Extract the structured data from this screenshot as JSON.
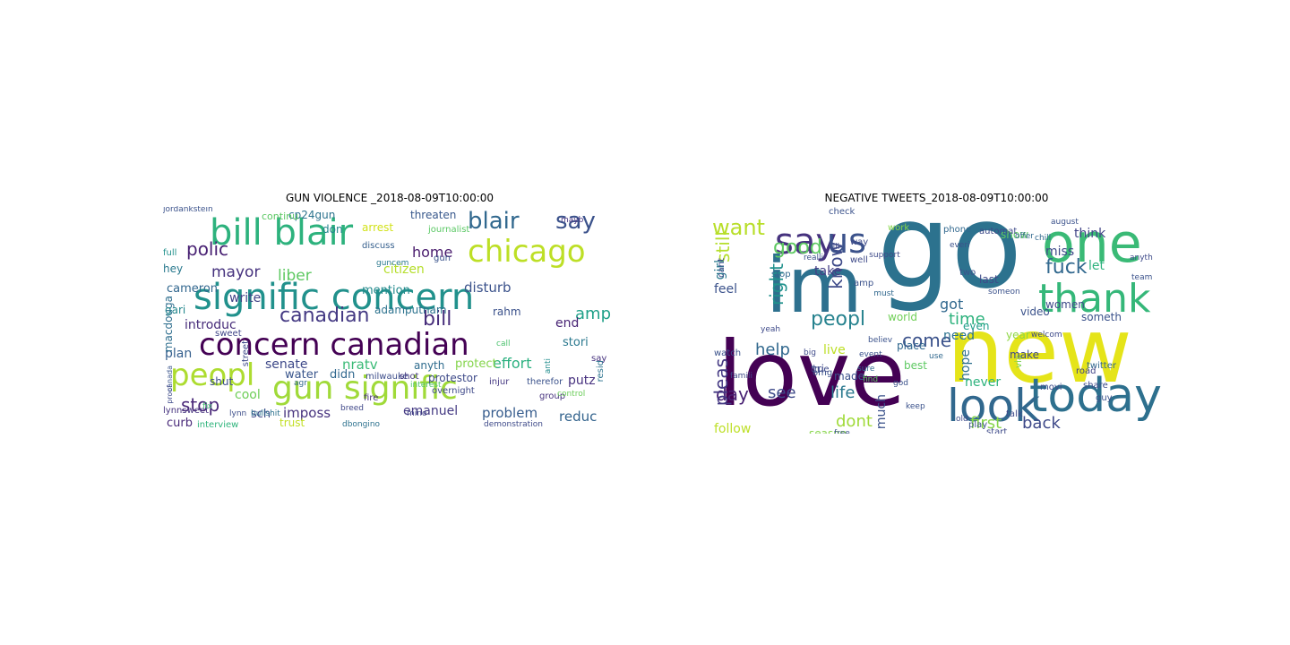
{
  "figures": [
    {
      "title": "GUN VIOLENCE _2018-08-09T10:00:00",
      "words": [
        {
          "text": "signific concern",
          "color": "#21918c"
        },
        {
          "text": "concern canadian",
          "color": "#440154"
        },
        {
          "text": "gun signific",
          "color": "#a0da39"
        },
        {
          "text": "bill blair",
          "color": "#2db27d"
        },
        {
          "text": "chicago",
          "color": "#bddf26"
        },
        {
          "text": "peopl",
          "color": "#addc30"
        },
        {
          "text": "blair",
          "color": "#31688e"
        },
        {
          "text": "say",
          "color": "#3b528b"
        },
        {
          "text": "canadian",
          "color": "#443983"
        },
        {
          "text": "bill",
          "color": "#472d7b"
        },
        {
          "text": "polic",
          "color": "#482173"
        },
        {
          "text": "mayor",
          "color": "#46327e"
        },
        {
          "text": "liber",
          "color": "#5ec962"
        },
        {
          "text": "stop",
          "color": "#482677"
        },
        {
          "text": "senate",
          "color": "#3e4989"
        },
        {
          "text": "effort",
          "color": "#2ab07f"
        },
        {
          "text": "problem",
          "color": "#365c8d"
        },
        {
          "text": "reduc",
          "color": "#33638d"
        },
        {
          "text": "imposs",
          "color": "#46327e"
        },
        {
          "text": "nratv",
          "color": "#3aba76"
        },
        {
          "text": "water",
          "color": "#39558c"
        },
        {
          "text": "amp",
          "color": "#1fa088"
        },
        {
          "text": "end",
          "color": "#482475"
        },
        {
          "text": "home",
          "color": "#481a6c"
        },
        {
          "text": "citizen",
          "color": "#b5de2b"
        },
        {
          "text": "cameron",
          "color": "#31668e"
        },
        {
          "text": "introduc",
          "color": "#472c7a"
        },
        {
          "text": "adamputnam",
          "color": "#2c728e"
        },
        {
          "text": "disturb",
          "color": "#3b528b"
        },
        {
          "text": "stori",
          "color": "#2a788e"
        },
        {
          "text": "putz",
          "color": "#46307e"
        },
        {
          "text": "emanuel",
          "color": "#443a83"
        },
        {
          "text": "write",
          "color": "#414487"
        },
        {
          "text": "plan",
          "color": "#355f8d"
        },
        {
          "text": "cool",
          "color": "#6ece58"
        },
        {
          "text": "sch",
          "color": "#3f4889"
        },
        {
          "text": "curb",
          "color": "#482979"
        },
        {
          "text": "trust",
          "color": "#c2df23"
        },
        {
          "text": "protect",
          "color": "#84d44b"
        },
        {
          "text": "rahm",
          "color": "#3b518b"
        },
        {
          "text": "anyth",
          "color": "#2f6c8e"
        },
        {
          "text": "didn",
          "color": "#31688e"
        },
        {
          "text": "mention",
          "color": "#238a8d"
        },
        {
          "text": "macdouga",
          "color": "#2e6e8e"
        },
        {
          "text": "gari",
          "color": "#24878e"
        },
        {
          "text": "hey",
          "color": "#29798e"
        },
        {
          "text": "arrest",
          "color": "#d2e21b"
        },
        {
          "text": "threaten",
          "color": "#38588c"
        },
        {
          "text": "cp24gun",
          "color": "#2c738e"
        },
        {
          "text": "don",
          "color": "#25858e"
        },
        {
          "text": "shut",
          "color": "#3d4e8a"
        },
        {
          "text": "full",
          "color": "#21918c"
        },
        {
          "text": "protestor",
          "color": "#3e4a89"
        },
        {
          "text": "continu",
          "color": "#5cc863"
        },
        {
          "text": "jordankstein",
          "color": "#3b528b"
        },
        {
          "text": "journalist",
          "color": "#5ac864"
        },
        {
          "text": "lynnsweet",
          "color": "#46337f"
        },
        {
          "text": "milwauke",
          "color": "#3d4d8a"
        },
        {
          "text": "therefor",
          "color": "#3b528b"
        },
        {
          "text": "injur",
          "color": "#453882"
        },
        {
          "text": "demonstration",
          "color": "#3e4a89"
        },
        {
          "text": "interview",
          "color": "#2fb47c"
        },
        {
          "text": "dbongino",
          "color": "#2c718e"
        },
        {
          "text": "overnight",
          "color": "#3e4989"
        },
        {
          "text": "shot",
          "color": "#453781"
        },
        {
          "text": "gun",
          "color": "#3a548c"
        },
        {
          "text": "discuss",
          "color": "#355f8d"
        },
        {
          "text": "sweet",
          "color": "#404688"
        },
        {
          "text": "resid",
          "color": "#2c738e"
        },
        {
          "text": "group",
          "color": "#46327e"
        },
        {
          "text": "fire",
          "color": "#472f7d"
        },
        {
          "text": "control",
          "color": "#6ccd5a"
        },
        {
          "text": "mino",
          "color": "#404588"
        },
        {
          "text": "breed",
          "color": "#3f4788"
        },
        {
          "text": "interest",
          "color": "#50c46a"
        },
        {
          "text": "call",
          "color": "#4ac16d"
        },
        {
          "text": "anti",
          "color": "#228d8d"
        },
        {
          "text": "street",
          "color": "#3e4989"
        },
        {
          "text": "bullshit",
          "color": "#2c728e"
        },
        {
          "text": "fix",
          "color": "#42be71"
        },
        {
          "text": "lynn",
          "color": "#3d4e8a"
        },
        {
          "text": "say",
          "color": "#46327e"
        },
        {
          "text": "mayb",
          "color": "#463480"
        },
        {
          "text": "agr",
          "color": "#31688e"
        },
        {
          "text": "canada",
          "color": "#3a548c"
        },
        {
          "text": "proof",
          "color": "#3e4a89"
        },
        {
          "text": "guncem",
          "color": "#2a788e"
        }
      ]
    },
    {
      "title": "NEGATIVE TWEETS_2018-08-09T10:00:00",
      "words": [
        {
          "text": "go",
          "color": "#2c728e"
        },
        {
          "text": "im",
          "color": "#2d708e"
        },
        {
          "text": "new",
          "color": "#e5e419"
        },
        {
          "text": "love",
          "color": "#440154"
        },
        {
          "text": "one",
          "color": "#3aba76"
        },
        {
          "text": "thank",
          "color": "#35b779"
        },
        {
          "text": "today",
          "color": "#2d708e"
        },
        {
          "text": "look",
          "color": "#31688e"
        },
        {
          "text": "say",
          "color": "#46327e"
        },
        {
          "text": "us",
          "color": "#3b528b"
        },
        {
          "text": "want",
          "color": "#b8de29"
        },
        {
          "text": "still",
          "color": "#b5de2b"
        },
        {
          "text": "fuck",
          "color": "#31688e"
        },
        {
          "text": "peopl",
          "color": "#26828e"
        },
        {
          "text": "know",
          "color": "#3e4a89"
        },
        {
          "text": "good",
          "color": "#5ec962"
        },
        {
          "text": "right",
          "color": "#21918c"
        },
        {
          "text": "day",
          "color": "#482173"
        },
        {
          "text": "pleas",
          "color": "#443983"
        },
        {
          "text": "come",
          "color": "#3b528b"
        },
        {
          "text": "help",
          "color": "#31688e"
        },
        {
          "text": "see",
          "color": "#3e4a89"
        },
        {
          "text": "life",
          "color": "#2a788e"
        },
        {
          "text": "dont",
          "color": "#a0da39"
        },
        {
          "text": "first",
          "color": "#86d549"
        },
        {
          "text": "back",
          "color": "#3e4989"
        },
        {
          "text": "time",
          "color": "#2db27d"
        },
        {
          "text": "got",
          "color": "#31688e"
        },
        {
          "text": "need",
          "color": "#2c728e"
        },
        {
          "text": "hope",
          "color": "#2d708e"
        },
        {
          "text": "never",
          "color": "#2db27d"
        },
        {
          "text": "much",
          "color": "#3b528b"
        },
        {
          "text": "follow",
          "color": "#bddf26"
        },
        {
          "text": "girl",
          "color": "#2a788e"
        },
        {
          "text": "take",
          "color": "#433e85"
        },
        {
          "text": "feel",
          "color": "#3b528b"
        },
        {
          "text": "let",
          "color": "#2db27d"
        },
        {
          "text": "miss",
          "color": "#3e4a89"
        },
        {
          "text": "think",
          "color": "#414487"
        },
        {
          "text": "last",
          "color": "#3e4a89"
        },
        {
          "text": "year",
          "color": "#8fd744"
        },
        {
          "text": "via",
          "color": "#7ad151"
        },
        {
          "text": "even",
          "color": "#1f9e89"
        },
        {
          "text": "place",
          "color": "#31688e"
        },
        {
          "text": "best",
          "color": "#5ec962"
        },
        {
          "text": "work",
          "color": "#86d549"
        },
        {
          "text": "world",
          "color": "#70cf57"
        },
        {
          "text": "video",
          "color": "#3b528b"
        },
        {
          "text": "women",
          "color": "#3e4989"
        },
        {
          "text": "someth",
          "color": "#3b528b"
        },
        {
          "text": "make",
          "color": "#3e4a89"
        },
        {
          "text": "made",
          "color": "#3b528b"
        },
        {
          "text": "live",
          "color": "#bddf26"
        },
        {
          "text": "season",
          "color": "#86d549"
        },
        {
          "text": "tri",
          "color": "#3e4a89"
        },
        {
          "text": "omg",
          "color": "#3b528b"
        },
        {
          "text": "stop",
          "color": "#31688e"
        },
        {
          "text": "cant",
          "color": "#3e4a89"
        },
        {
          "text": "amp",
          "color": "#3b528b"
        },
        {
          "text": "twitter",
          "color": "#31688e"
        },
        {
          "text": "show",
          "color": "#5ec962"
        },
        {
          "text": "way",
          "color": "#3e4a89"
        },
        {
          "text": "watch",
          "color": "#3b528b"
        },
        {
          "text": "true",
          "color": "#3e4a89"
        },
        {
          "text": "play",
          "color": "#3b528b"
        },
        {
          "text": "road",
          "color": "#414487"
        },
        {
          "text": "share",
          "color": "#3e4a89"
        },
        {
          "text": "guy",
          "color": "#3b528b"
        },
        {
          "text": "movi",
          "color": "#3e4a89"
        },
        {
          "text": "two",
          "color": "#3b528b"
        },
        {
          "text": "well",
          "color": "#3e4a89"
        },
        {
          "text": "phone",
          "color": "#31688e"
        },
        {
          "text": "check",
          "color": "#3b528b"
        },
        {
          "text": "automat",
          "color": "#3e4a89"
        },
        {
          "text": "august",
          "color": "#3b528b"
        },
        {
          "text": "offer",
          "color": "#31688e"
        },
        {
          "text": "famili",
          "color": "#3e4a89"
        },
        {
          "text": "event",
          "color": "#3b528b"
        },
        {
          "text": "yeah",
          "color": "#3e4a89"
        },
        {
          "text": "keep",
          "color": "#3b528b"
        },
        {
          "text": "start",
          "color": "#3e4a89"
        },
        {
          "text": "use",
          "color": "#31688e"
        },
        {
          "text": "believ",
          "color": "#3b528b"
        },
        {
          "text": "anyth",
          "color": "#3e4a89"
        },
        {
          "text": "team",
          "color": "#3b528b"
        },
        {
          "text": "chill",
          "color": "#31688e"
        },
        {
          "text": "welcom",
          "color": "#3e4a89"
        },
        {
          "text": "free",
          "color": "#3b528b"
        },
        {
          "text": "find",
          "color": "#5ec962"
        },
        {
          "text": "talk",
          "color": "#3e4a89"
        },
        {
          "text": "god",
          "color": "#3b528b"
        },
        {
          "text": "old",
          "color": "#3e4a89"
        },
        {
          "text": "realli",
          "color": "#3b528b"
        },
        {
          "text": "sure",
          "color": "#31688e"
        },
        {
          "text": "big",
          "color": "#3e4a89"
        },
        {
          "text": "someon",
          "color": "#3b528b"
        },
        {
          "text": "support",
          "color": "#3e4a89"
        },
        {
          "text": "everi",
          "color": "#3b528b"
        },
        {
          "text": "must",
          "color": "#31688e"
        },
        {
          "text": "ill",
          "color": "#3e4a89"
        }
      ]
    }
  ]
}
